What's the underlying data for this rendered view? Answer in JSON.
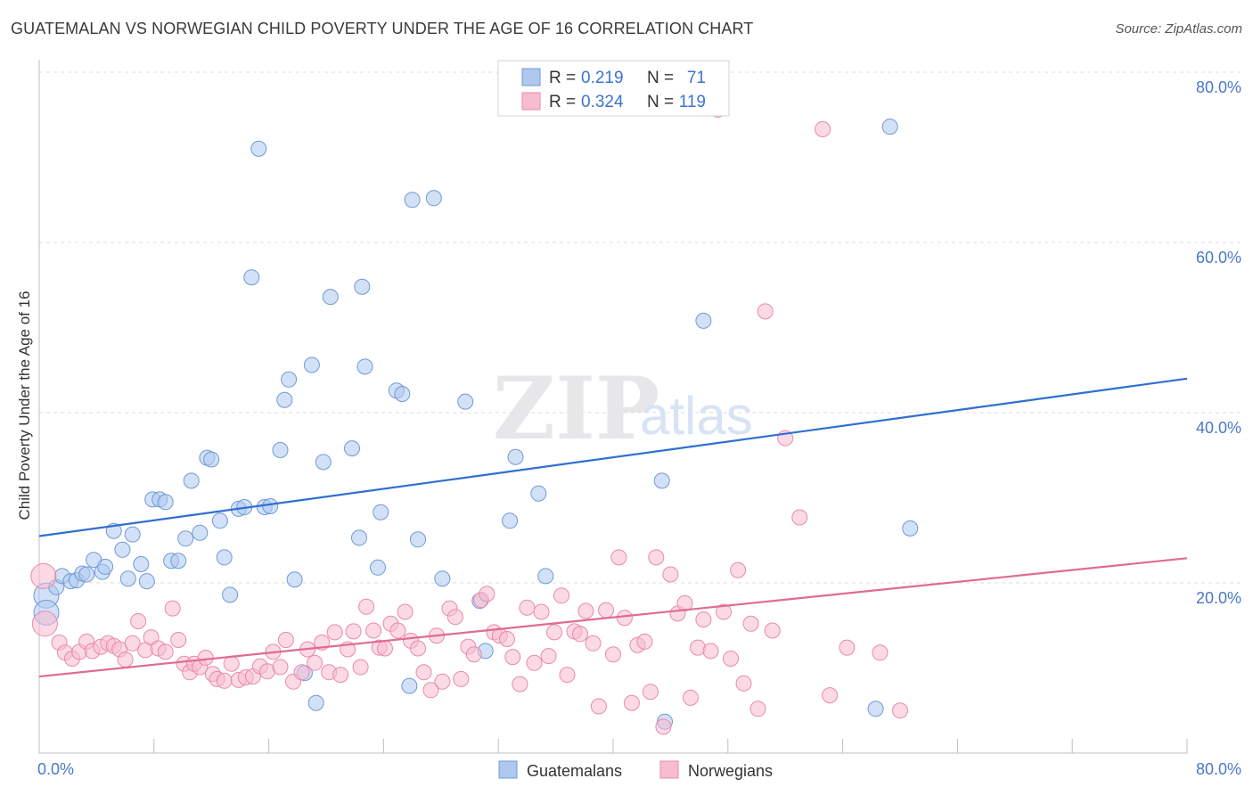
{
  "header": {
    "title": "GUATEMALAN VS NORWEGIAN CHILD POVERTY UNDER THE AGE OF 16 CORRELATION CHART",
    "source": "Source: ZipAtlas.com"
  },
  "watermark": {
    "zip": "ZIP",
    "atlas": "atlas"
  },
  "legend_top": {
    "rows": [
      {
        "r_label": "R =",
        "r_value": "0.219",
        "n_label": "N =",
        "n_value": "71",
        "color": "#aec8ee"
      },
      {
        "r_label": "R =",
        "r_value": "0.324",
        "n_label": "N =",
        "n_value": "119",
        "color": "#f8bcd0"
      }
    ]
  },
  "legend_bottom": {
    "items": [
      {
        "label": "Guatemalans",
        "color": "#aec8ee"
      },
      {
        "label": "Norwegians",
        "color": "#f8bcd0"
      }
    ]
  },
  "axes": {
    "ylabel": "Child Poverty Under the Age of 16",
    "x_min_label": "0.0%",
    "x_max_label": "80.0%",
    "y_tick_labels": [
      "20.0%",
      "40.0%",
      "60.0%",
      "80.0%"
    ]
  },
  "colors": {
    "blue_fill": "#aec8ee",
    "blue_stroke": "#6f9ad8",
    "blue_line": "#2f6fd0",
    "pink_fill": "#f8bcd0",
    "pink_stroke": "#e88aab",
    "pink_line": "#e06a95",
    "tick_text": "#4a78c9",
    "grid": "#dcdcdc"
  },
  "chart_data": {
    "type": "scatter",
    "title": "GUATEMALAN VS NORWEGIAN CHILD POVERTY UNDER THE AGE OF 16 CORRELATION CHART",
    "xlabel": "",
    "ylabel": "Child Poverty Under the Age of 16",
    "xlim": [
      0,
      80
    ],
    "ylim": [
      0,
      82
    ],
    "y_ticks": [
      20,
      40,
      60,
      80
    ],
    "grid": "horizontal dashed",
    "legend_placement": "top-center and bottom-center",
    "series": [
      {
        "name": "Guatemalans",
        "stats": {
          "R": 0.219,
          "N": 71
        },
        "trend": {
          "x": [
            0,
            80
          ],
          "y": [
            25.5,
            44.0
          ]
        },
        "points": [
          [
            0.5,
            18.5
          ],
          [
            0.5,
            16.5
          ],
          [
            1.2,
            19.5
          ],
          [
            1.6,
            20.8
          ],
          [
            2.2,
            20.2
          ],
          [
            2.6,
            20.3
          ],
          [
            3.0,
            21.1
          ],
          [
            3.3,
            21.0
          ],
          [
            3.8,
            22.7
          ],
          [
            4.4,
            21.3
          ],
          [
            4.6,
            21.9
          ],
          [
            5.2,
            26.1
          ],
          [
            5.8,
            23.9
          ],
          [
            6.2,
            20.5
          ],
          [
            6.5,
            25.7
          ],
          [
            7.1,
            22.2
          ],
          [
            7.5,
            20.2
          ],
          [
            7.9,
            29.8
          ],
          [
            8.4,
            29.8
          ],
          [
            8.8,
            29.5
          ],
          [
            9.2,
            22.6
          ],
          [
            9.7,
            22.6
          ],
          [
            10.2,
            25.2
          ],
          [
            10.6,
            32.0
          ],
          [
            11.2,
            25.9
          ],
          [
            11.7,
            34.7
          ],
          [
            12.0,
            34.5
          ],
          [
            12.6,
            27.3
          ],
          [
            12.9,
            23.0
          ],
          [
            13.3,
            18.6
          ],
          [
            13.9,
            28.7
          ],
          [
            14.3,
            28.9
          ],
          [
            14.8,
            55.9
          ],
          [
            15.3,
            71.0
          ],
          [
            15.7,
            28.9
          ],
          [
            16.1,
            29.0
          ],
          [
            16.8,
            35.6
          ],
          [
            17.1,
            41.5
          ],
          [
            17.4,
            43.9
          ],
          [
            17.8,
            20.4
          ],
          [
            18.5,
            9.4
          ],
          [
            19.0,
            45.6
          ],
          [
            19.3,
            5.9
          ],
          [
            19.8,
            34.2
          ],
          [
            20.3,
            53.6
          ],
          [
            21.8,
            35.8
          ],
          [
            22.3,
            25.3
          ],
          [
            22.5,
            54.8
          ],
          [
            22.7,
            45.4
          ],
          [
            23.6,
            21.8
          ],
          [
            23.8,
            28.3
          ],
          [
            24.9,
            42.6
          ],
          [
            25.3,
            42.2
          ],
          [
            25.8,
            7.9
          ],
          [
            26.0,
            65.0
          ],
          [
            26.4,
            25.1
          ],
          [
            27.5,
            65.2
          ],
          [
            28.1,
            20.5
          ],
          [
            29.7,
            41.3
          ],
          [
            30.7,
            17.9
          ],
          [
            31.1,
            12.0
          ],
          [
            32.8,
            27.3
          ],
          [
            33.2,
            34.8
          ],
          [
            34.8,
            30.5
          ],
          [
            35.3,
            20.8
          ],
          [
            43.4,
            32.0
          ],
          [
            43.6,
            3.7
          ],
          [
            46.3,
            50.8
          ],
          [
            58.3,
            5.2
          ],
          [
            59.3,
            73.6
          ],
          [
            60.7,
            26.4
          ]
        ]
      },
      {
        "name": "Norwegians",
        "stats": {
          "R": 0.324,
          "N": 119
        },
        "trend": {
          "x": [
            0,
            80
          ],
          "y": [
            9.0,
            22.9
          ]
        },
        "points": [
          [
            0.3,
            20.8
          ],
          [
            0.4,
            15.2
          ],
          [
            1.4,
            13.0
          ],
          [
            1.8,
            11.8
          ],
          [
            2.3,
            11.1
          ],
          [
            2.8,
            11.9
          ],
          [
            3.3,
            13.1
          ],
          [
            3.7,
            12.0
          ],
          [
            4.3,
            12.5
          ],
          [
            4.8,
            12.9
          ],
          [
            5.2,
            12.6
          ],
          [
            5.6,
            12.2
          ],
          [
            6.0,
            11.0
          ],
          [
            6.5,
            12.9
          ],
          [
            6.9,
            15.5
          ],
          [
            7.4,
            12.1
          ],
          [
            7.8,
            13.6
          ],
          [
            8.3,
            12.3
          ],
          [
            8.8,
            11.9
          ],
          [
            9.3,
            17.0
          ],
          [
            9.7,
            13.3
          ],
          [
            10.1,
            10.5
          ],
          [
            10.5,
            9.5
          ],
          [
            10.8,
            10.5
          ],
          [
            11.2,
            10.1
          ],
          [
            11.6,
            11.2
          ],
          [
            12.1,
            9.3
          ],
          [
            12.4,
            8.7
          ],
          [
            12.9,
            8.5
          ],
          [
            13.4,
            10.5
          ],
          [
            13.9,
            8.6
          ],
          [
            14.4,
            8.9
          ],
          [
            14.9,
            9.0
          ],
          [
            15.4,
            10.2
          ],
          [
            15.9,
            9.6
          ],
          [
            16.3,
            11.9
          ],
          [
            16.8,
            10.1
          ],
          [
            17.2,
            13.3
          ],
          [
            17.7,
            8.4
          ],
          [
            18.3,
            9.5
          ],
          [
            18.7,
            12.2
          ],
          [
            19.2,
            10.6
          ],
          [
            19.7,
            13.0
          ],
          [
            20.2,
            9.5
          ],
          [
            20.6,
            14.2
          ],
          [
            21.0,
            9.2
          ],
          [
            21.5,
            12.2
          ],
          [
            21.9,
            14.3
          ],
          [
            22.4,
            10.1
          ],
          [
            22.8,
            17.2
          ],
          [
            23.3,
            14.4
          ],
          [
            23.7,
            12.4
          ],
          [
            24.1,
            12.3
          ],
          [
            24.5,
            15.2
          ],
          [
            25.0,
            14.4
          ],
          [
            25.5,
            16.6
          ],
          [
            25.9,
            13.2
          ],
          [
            26.4,
            12.3
          ],
          [
            26.8,
            9.5
          ],
          [
            27.3,
            7.4
          ],
          [
            27.7,
            13.8
          ],
          [
            28.1,
            8.4
          ],
          [
            28.6,
            17.0
          ],
          [
            29.0,
            16.0
          ],
          [
            29.4,
            8.7
          ],
          [
            29.9,
            12.5
          ],
          [
            30.3,
            11.6
          ],
          [
            30.8,
            18.0
          ],
          [
            31.2,
            18.7
          ],
          [
            31.7,
            14.2
          ],
          [
            32.1,
            13.8
          ],
          [
            32.6,
            13.4
          ],
          [
            33.0,
            11.3
          ],
          [
            33.5,
            8.1
          ],
          [
            34.0,
            17.1
          ],
          [
            34.5,
            10.6
          ],
          [
            35.0,
            16.6
          ],
          [
            35.5,
            11.4
          ],
          [
            35.9,
            14.2
          ],
          [
            36.4,
            18.5
          ],
          [
            36.8,
            9.2
          ],
          [
            37.3,
            14.3
          ],
          [
            37.7,
            14.0
          ],
          [
            38.1,
            16.7
          ],
          [
            38.6,
            12.9
          ],
          [
            39.0,
            5.5
          ],
          [
            39.5,
            16.8
          ],
          [
            40.0,
            11.6
          ],
          [
            40.4,
            23.0
          ],
          [
            40.8,
            15.9
          ],
          [
            41.3,
            5.9
          ],
          [
            41.7,
            12.7
          ],
          [
            42.2,
            13.1
          ],
          [
            42.6,
            7.2
          ],
          [
            43.0,
            23.0
          ],
          [
            43.5,
            3.1
          ],
          [
            44.0,
            21.0
          ],
          [
            44.5,
            16.4
          ],
          [
            45.0,
            17.6
          ],
          [
            45.4,
            6.5
          ],
          [
            45.9,
            12.4
          ],
          [
            46.3,
            15.7
          ],
          [
            46.8,
            12.0
          ],
          [
            47.3,
            75.6
          ],
          [
            47.7,
            16.6
          ],
          [
            48.2,
            11.1
          ],
          [
            48.7,
            21.5
          ],
          [
            49.1,
            8.2
          ],
          [
            49.6,
            15.2
          ],
          [
            50.1,
            5.2
          ],
          [
            50.6,
            51.9
          ],
          [
            51.1,
            14.4
          ],
          [
            52.0,
            37.0
          ],
          [
            53.0,
            27.7
          ],
          [
            54.6,
            73.3
          ],
          [
            55.1,
            6.8
          ],
          [
            56.3,
            12.4
          ],
          [
            58.6,
            11.8
          ],
          [
            60.0,
            5.0
          ]
        ]
      }
    ]
  }
}
